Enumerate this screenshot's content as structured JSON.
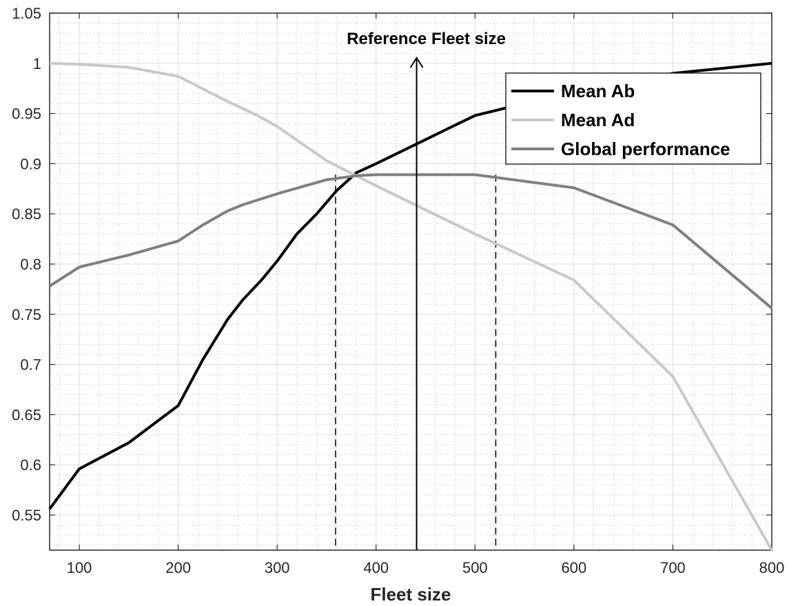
{
  "chart_data": {
    "type": "line",
    "title": "",
    "xlabel": "Fleet size",
    "ylabel": "",
    "xlim": [
      70,
      800
    ],
    "ylim": [
      0.515,
      1.05
    ],
    "x_ticks": [
      100,
      200,
      300,
      400,
      500,
      600,
      700,
      800
    ],
    "y_ticks": [
      0.55,
      0.6,
      0.65,
      0.7,
      0.75,
      0.8,
      0.85,
      0.9,
      0.95,
      1,
      1.05
    ],
    "grid": true,
    "minor_grid": true,
    "legend_position": "top-right",
    "series": [
      {
        "name": "Mean Ab",
        "color": "#000000",
        "x": [
          70,
          100,
          150,
          200,
          225,
          250,
          265,
          285,
          300,
          320,
          340,
          360,
          380,
          400,
          500,
          550,
          600,
          650,
          700,
          800
        ],
        "y": [
          0.556,
          0.596,
          0.622,
          0.659,
          0.705,
          0.745,
          0.764,
          0.785,
          0.803,
          0.83,
          0.85,
          0.873,
          0.891,
          0.9,
          0.948,
          0.96,
          0.97,
          0.98,
          0.99,
          1.0
        ]
      },
      {
        "name": "Mean Ad",
        "color": "#c8c8c8",
        "x": [
          70,
          100,
          150,
          200,
          250,
          280,
          300,
          350,
          400,
          500,
          600,
          700,
          800
        ],
        "y": [
          1.0,
          0.999,
          0.996,
          0.987,
          0.962,
          0.948,
          0.937,
          0.903,
          0.878,
          0.83,
          0.784,
          0.688,
          0.515
        ]
      },
      {
        "name": "Global performance",
        "color": "#7f7f7f",
        "x": [
          70,
          100,
          150,
          200,
          225,
          250,
          265,
          300,
          350,
          380,
          400,
          500,
          600,
          700,
          800
        ],
        "y": [
          0.778,
          0.797,
          0.809,
          0.823,
          0.839,
          0.853,
          0.859,
          0.87,
          0.884,
          0.888,
          0.889,
          0.889,
          0.876,
          0.839,
          0.756
        ]
      }
    ],
    "annotations": {
      "reference_label": "Reference Fleet size",
      "reference_x": 441,
      "bound_lines_x": [
        359,
        521
      ]
    }
  }
}
